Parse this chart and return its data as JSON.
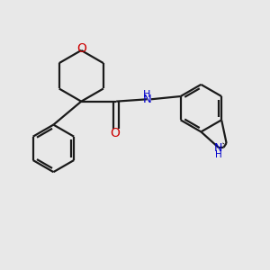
{
  "bg_color": "#e8e8e8",
  "bond_color": "#1a1a1a",
  "O_color": "#cc0000",
  "N_color": "#0000cc",
  "line_width": 1.6,
  "font_size_atom": 9,
  "fig_size": [
    3.0,
    3.0
  ],
  "dpi": 100,
  "xlim": [
    0,
    10
  ],
  "ylim": [
    0,
    10
  ]
}
